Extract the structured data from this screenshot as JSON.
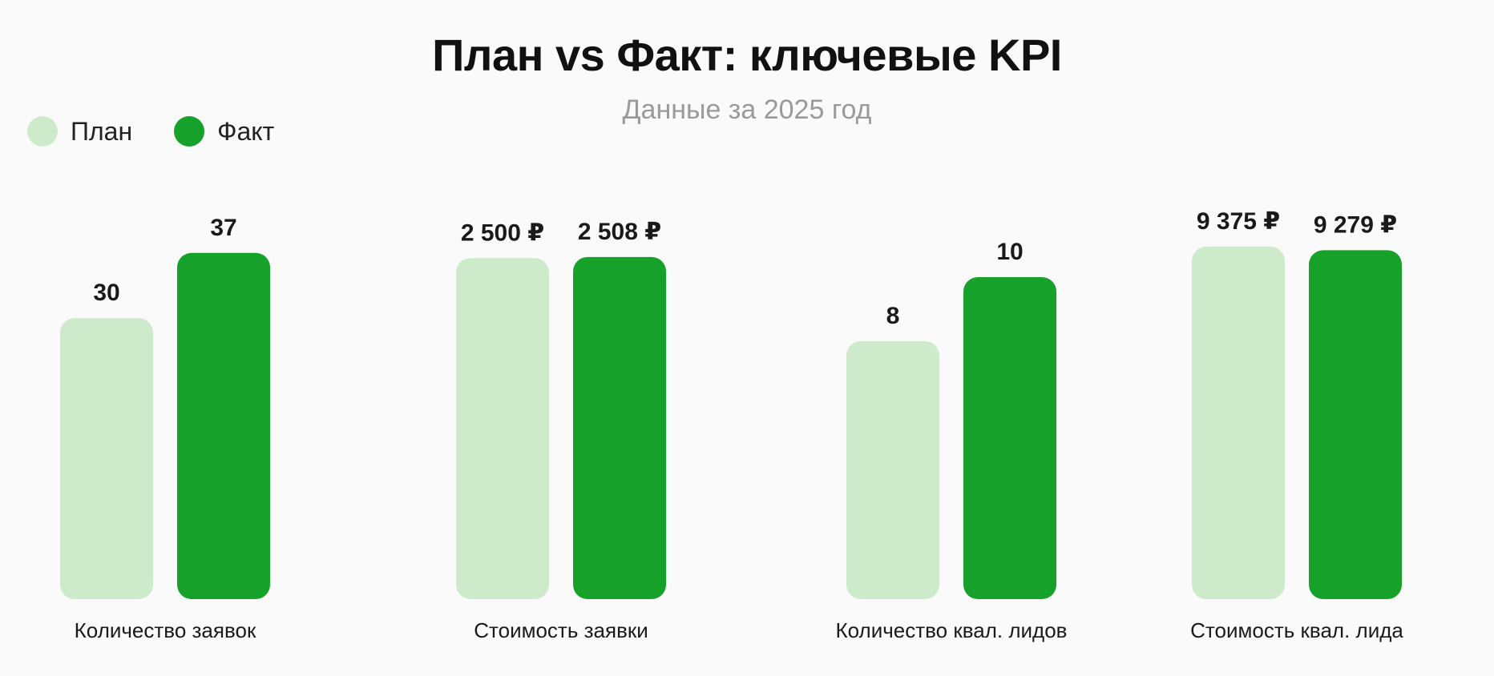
{
  "chart_data": {
    "type": "bar",
    "title": "План vs Факт: ключевые KPI",
    "subtitle": "Данные за 2025 год",
    "legend_position": "top-left",
    "grid": false,
    "categories": [
      "Количество заявок",
      "Стоимость заявки",
      "Количество квал. лидов",
      "Стоимость квал. лида"
    ],
    "series": [
      {
        "name": "План",
        "color": "#cdebcb",
        "values": [
          30,
          2500,
          8,
          9375
        ],
        "labels": [
          "30",
          "2 500 ₽",
          "8",
          "9 375 ₽"
        ]
      },
      {
        "name": "Факт",
        "color": "#16a22a",
        "values": [
          37,
          2508,
          10,
          9279
        ],
        "labels": [
          "37",
          "2 508 ₽",
          "10",
          "9 279 ₽"
        ]
      }
    ],
    "group_max": [
      43,
      2950,
      12.5,
      10700
    ]
  }
}
